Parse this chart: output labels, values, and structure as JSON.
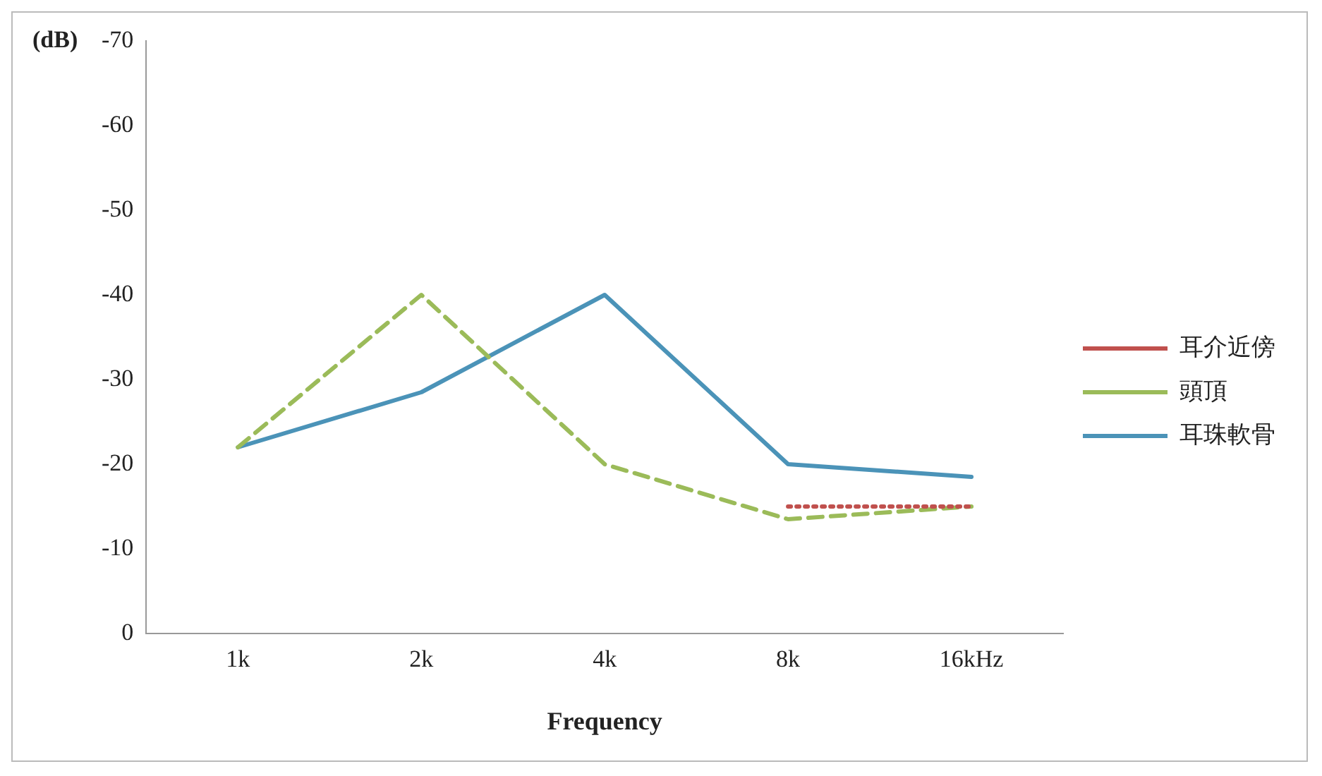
{
  "chart_data": {
    "type": "line",
    "ylabel": "(dB)",
    "xlabel": "Frequency",
    "categories": [
      "1k",
      "2k",
      "4k",
      "8k",
      "16kHz"
    ],
    "series": [
      {
        "name": "耳介近傍",
        "color": "#c0504d",
        "line_style": "dotted",
        "values": [
          null,
          null,
          null,
          -15,
          -15
        ]
      },
      {
        "name": "頭頂",
        "color": "#9bbb59",
        "line_style": "dashed",
        "values": [
          -22,
          -40,
          -20,
          -13.5,
          -15
        ]
      },
      {
        "name": "耳珠軟骨",
        "color": "#4b93b8",
        "line_style": "solid",
        "values": [
          -22,
          -28.5,
          -40,
          -20,
          -18.5
        ]
      }
    ],
    "ylim": [
      0,
      -70
    ],
    "yticks": [
      0,
      -10,
      -20,
      -30,
      -40,
      -50,
      -60,
      -70
    ],
    "grid": false,
    "legend": "right",
    "marker": "none"
  }
}
